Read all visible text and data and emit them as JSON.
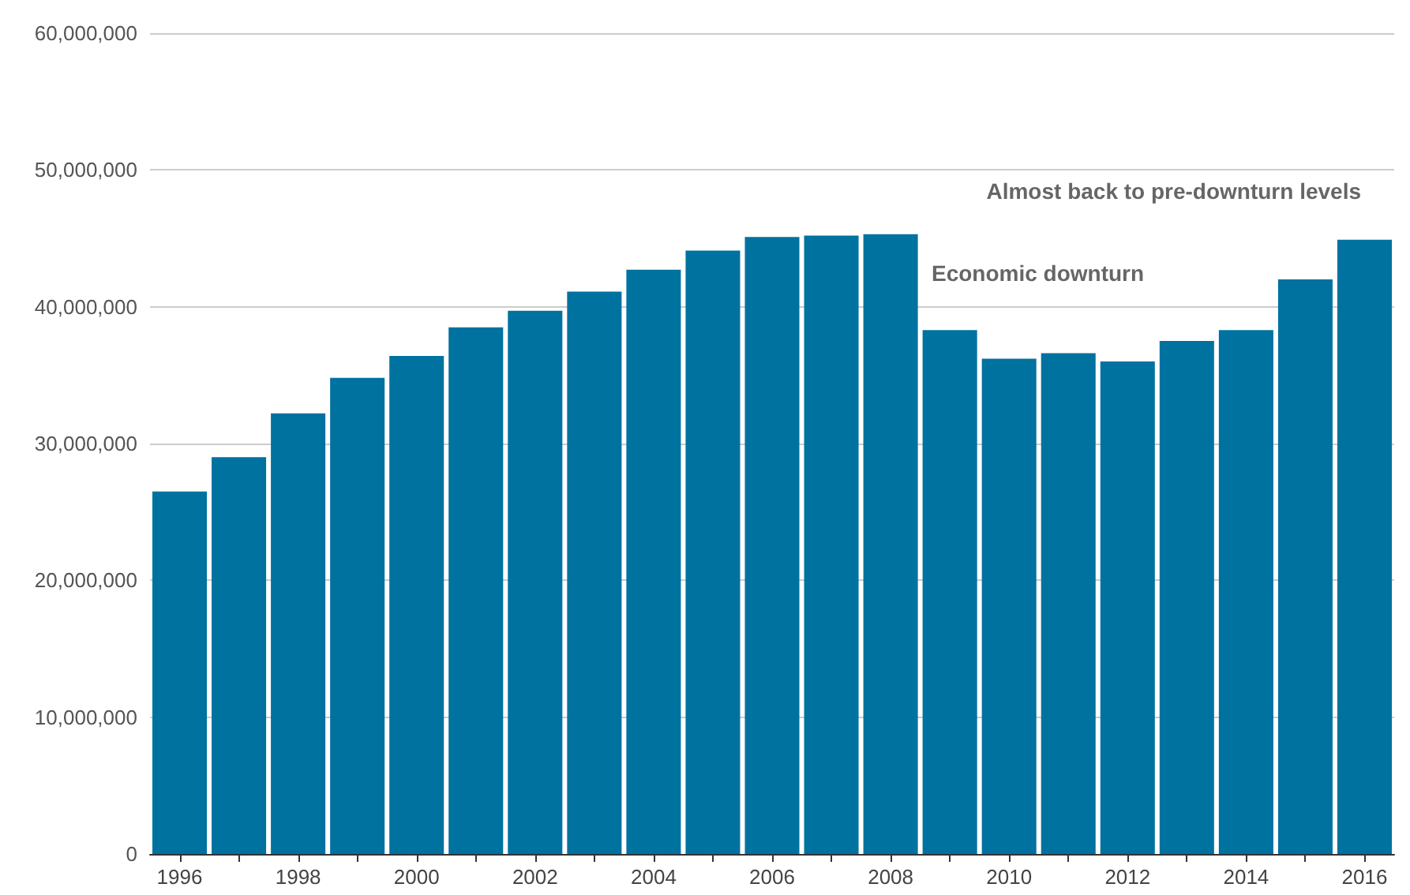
{
  "chart_data": {
    "type": "bar",
    "categories": [
      "1996",
      null,
      "1998",
      null,
      "2000",
      null,
      "2002",
      null,
      "2004",
      null,
      "2006",
      null,
      "2008",
      null,
      "2010",
      null,
      "2012",
      null,
      "2014",
      null,
      "2016"
    ],
    "values": [
      26500000.0,
      29000000.0,
      32200000.0,
      34800000.0,
      36400000.0,
      38500000.0,
      39700000.0,
      41100000.0,
      42700000.0,
      44100000.0,
      45100000.0,
      45200000.0,
      45300000.0,
      38300000.0,
      36200000.0,
      36600000.0,
      36000000.0,
      37500000.0,
      38300000.0,
      42000000.0,
      44900000.0
    ],
    "color": "#0072a0",
    "ylim": [
      0,
      60000000
    ],
    "yticks": [
      0,
      {
        "value": 10000000,
        "label": "10,000,000"
      },
      {
        "value": 20000000,
        "label": "20,000,000"
      },
      {
        "value": 30000000,
        "label": "30,000,000"
      },
      {
        "value": 40000000,
        "label": "40,000,000"
      },
      {
        "value": 50000000,
        "label": "50,000,000"
      },
      {
        "value": 60000000,
        "label": "60,000,000"
      }
    ],
    "grid": "y",
    "annotations": [
      "Economic downturn",
      "Almost back to pre-downturn levels"
    ]
  }
}
